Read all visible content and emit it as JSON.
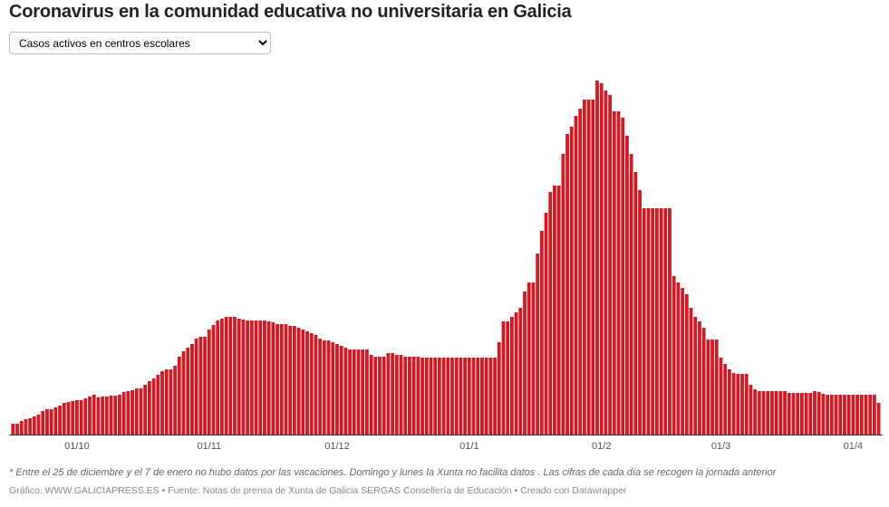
{
  "chart_data": {
    "type": "bar",
    "title": "Coronavirus en la comunidad educativa no universitaria en Galicia",
    "categories": [
      null,
      null,
      null,
      null,
      null,
      null,
      null,
      null,
      null,
      null,
      null,
      null,
      null,
      null,
      null,
      "01/10",
      null,
      null,
      null,
      null,
      null,
      null,
      null,
      null,
      null,
      null,
      null,
      null,
      null,
      null,
      null,
      null,
      null,
      null,
      null,
      null,
      null,
      null,
      null,
      null,
      null,
      null,
      null,
      null,
      null,
      null,
      "01/11",
      null,
      null,
      null,
      null,
      null,
      null,
      null,
      null,
      null,
      null,
      null,
      null,
      null,
      null,
      null,
      null,
      null,
      null,
      null,
      null,
      null,
      null,
      null,
      null,
      null,
      null,
      null,
      null,
      null,
      "01/12",
      null,
      null,
      null,
      null,
      null,
      null,
      null,
      null,
      null,
      null,
      null,
      null,
      null,
      null,
      null,
      null,
      null,
      null,
      null,
      null,
      null,
      null,
      null,
      null,
      null,
      null,
      null,
      null,
      null,
      null,
      "01/1",
      null,
      null,
      null,
      null,
      null,
      null,
      null,
      null,
      null,
      null,
      null,
      null,
      null,
      null,
      null,
      null,
      null,
      null,
      null,
      null,
      null,
      null,
      null,
      null,
      null,
      null,
      null,
      null,
      null,
      null,
      "01/2",
      null,
      null,
      null,
      null,
      null,
      null,
      null,
      null,
      null,
      null,
      null,
      null,
      null,
      null,
      null,
      null,
      null,
      null,
      null,
      null,
      null,
      null,
      null,
      null,
      null,
      null,
      null,
      "01/3",
      null,
      null,
      null,
      null,
      null,
      null,
      null,
      null,
      null,
      null,
      null,
      null,
      null,
      null,
      null,
      null,
      null,
      null,
      null,
      null,
      null,
      null,
      null,
      null,
      null,
      null,
      null,
      null,
      null,
      null,
      "01/4",
      null,
      null,
      null,
      null,
      null,
      null
    ],
    "values": [
      12,
      12,
      15,
      17,
      18,
      20,
      22,
      26,
      28,
      28,
      30,
      32,
      35,
      36,
      37,
      38,
      38,
      40,
      42,
      44,
      41,
      42,
      42,
      43,
      43,
      44,
      47,
      48,
      49,
      51,
      51,
      55,
      59,
      62,
      66,
      70,
      72,
      72,
      76,
      86,
      92,
      96,
      100,
      106,
      108,
      108,
      116,
      121,
      126,
      128,
      130,
      130,
      130,
      128,
      127,
      126,
      126,
      126,
      126,
      126,
      125,
      124,
      122,
      122,
      122,
      120,
      120,
      118,
      116,
      114,
      112,
      110,
      106,
      104,
      104,
      102,
      100,
      98,
      96,
      94,
      94,
      94,
      94,
      94,
      88,
      86,
      86,
      86,
      90,
      90,
      88,
      88,
      86,
      86,
      86,
      86,
      85,
      85,
      85,
      85,
      85,
      85,
      85,
      85,
      85,
      85,
      85,
      85,
      85,
      85,
      85,
      85,
      85,
      85,
      102,
      125,
      125,
      130,
      135,
      140,
      158,
      168,
      168,
      200,
      225,
      245,
      268,
      275,
      275,
      310,
      332,
      340,
      352,
      360,
      370,
      370,
      370,
      391,
      388,
      380,
      375,
      357,
      357,
      350,
      330,
      310,
      290,
      270,
      250,
      250,
      250,
      250,
      250,
      250,
      250,
      175,
      168,
      162,
      155,
      140,
      130,
      125,
      118,
      105,
      105,
      105,
      85,
      78,
      72,
      68,
      67,
      67,
      67,
      55,
      50,
      48,
      48,
      48,
      48,
      48,
      48,
      48,
      46,
      46,
      46,
      46,
      46,
      46,
      48,
      47,
      45,
      44,
      44,
      44,
      44,
      44,
      44,
      44,
      44,
      44,
      44,
      44,
      44,
      35
    ],
    "color": "#cf1b24",
    "ylim": [
      0,
      400
    ]
  },
  "dropdown": "Casos activos en centros escolares",
  "note": "* Entre el 25 de diciembre y el 7 de enero no hubo datos por las vacaciones. Domingo y lunes la Xunta no facilita datos . Las cifras de cada día se recogen la jornada anterior",
  "source": "Gráfico: WWW.GALICIAPRESS.ES • Fuente: Notas de prensa de Xunta de Galicia SERGAS Consellería de Educación • Creado con Datawrapper"
}
